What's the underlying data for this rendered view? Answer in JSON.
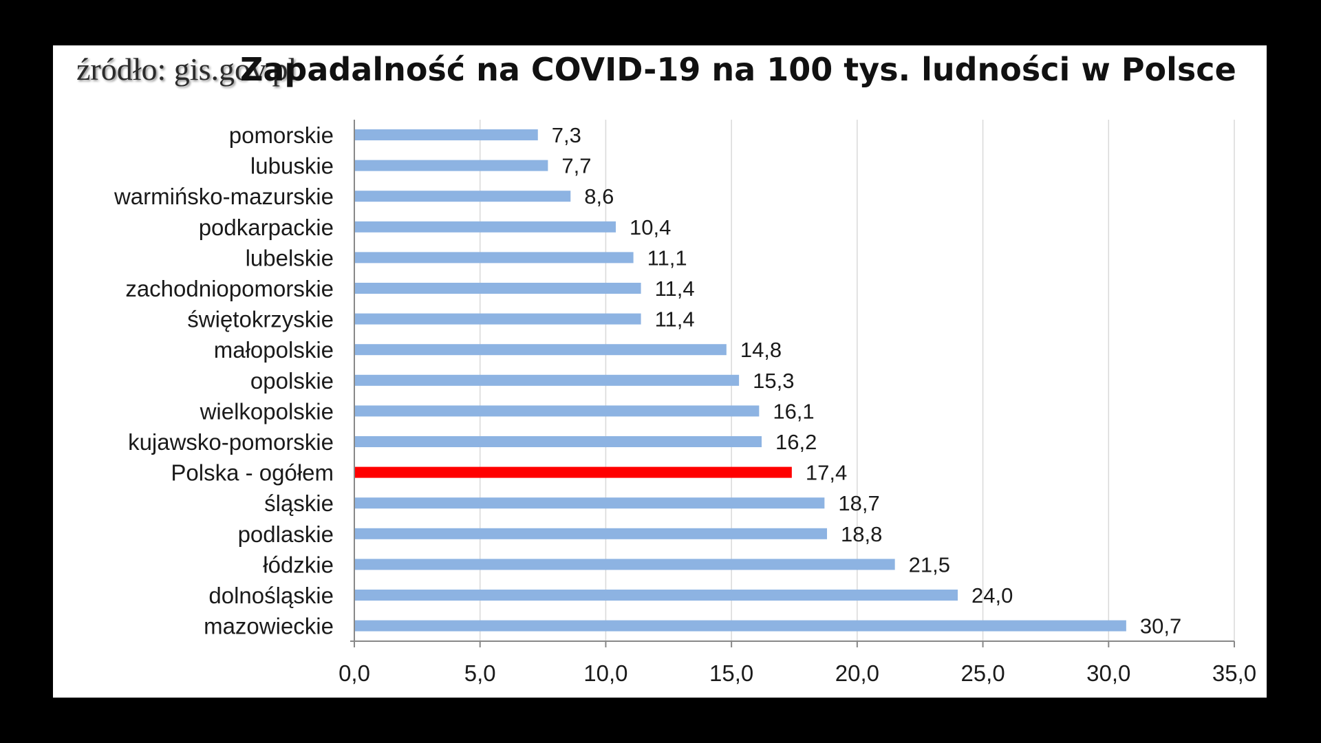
{
  "source": "źródło: gis.gov.pl",
  "colors": {
    "bar": "#8db3e2",
    "highlight": "#ff0000",
    "grid": "#d9d9d9",
    "axis": "#888888",
    "background": "#ffffff",
    "frame": "#000000"
  },
  "chart_data": {
    "type": "bar",
    "orientation": "horizontal",
    "title": "Zapadalność na COVID-19 na 100 tys. ludności w Polsce",
    "xlabel": "",
    "ylabel": "",
    "categories": [
      "pomorskie",
      "lubuskie",
      "warmińsko-mazurskie",
      "podkarpackie",
      "lubelskie",
      "zachodniopomorskie",
      "świętokrzyskie",
      "małopolskie",
      "opolskie",
      "wielkopolskie",
      "kujawsko-pomorskie",
      "Polska - ogółem",
      "śląskie",
      "podlaskie",
      "łódzkie",
      "dolnośląskie",
      "mazowieckie"
    ],
    "values": [
      7.3,
      7.7,
      8.6,
      10.4,
      11.1,
      11.4,
      11.4,
      14.8,
      15.3,
      16.1,
      16.2,
      17.4,
      18.7,
      18.8,
      21.5,
      24.0,
      30.7
    ],
    "value_labels": [
      "7,3",
      "7,7",
      "8,6",
      "10,4",
      "11,1",
      "11,4",
      "11,4",
      "14,8",
      "15,3",
      "16,1",
      "16,2",
      "17,4",
      "18,7",
      "18,8",
      "21,5",
      "24,0",
      "30,7"
    ],
    "highlight": "Polska - ogółem",
    "xlim": [
      0,
      35
    ],
    "xticks": [
      0,
      5,
      10,
      15,
      20,
      25,
      30,
      35
    ],
    "xtick_labels": [
      "0,0",
      "5,0",
      "10,0",
      "15,0",
      "20,0",
      "25,0",
      "30,0",
      "35,0"
    ],
    "grid": "vertical",
    "legend": "none"
  }
}
